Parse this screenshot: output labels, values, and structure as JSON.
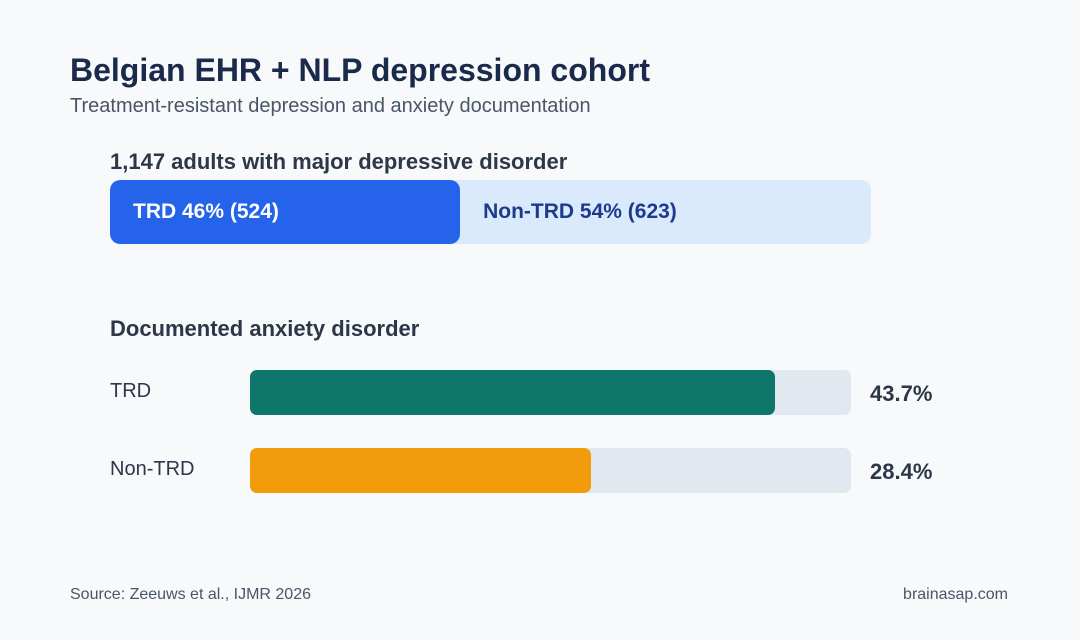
{
  "title": "Belgian EHR + NLP depression cohort",
  "subtitle": "Treatment-resistant depression and anxiety documentation",
  "footer": {
    "source": "Source: Zeeuws et al., IJMR 2026",
    "brand": "brainasap.com"
  },
  "colors": {
    "trd_split": "#2563eb",
    "nontrd_split": "#dbe9fd",
    "trd_bar": "#0e766b",
    "nontrd_bar": "#f39c0b",
    "track": "#e2e8f0"
  },
  "chart_data": [
    {
      "type": "bar",
      "stacked": true,
      "title": "1,147 adults with major depressive disorder",
      "categories": [
        "TRD",
        "Non-TRD"
      ],
      "values": [
        46,
        54
      ],
      "counts": [
        524,
        623
      ],
      "segment_labels": [
        "TRD 46% (524)",
        "Non-TRD 54% (623)"
      ]
    },
    {
      "type": "bar",
      "orientation": "horizontal",
      "title": "Documented anxiety disorder",
      "categories": [
        "TRD",
        "Non-TRD"
      ],
      "values": [
        43.7,
        28.4
      ],
      "value_labels": [
        "43.7%",
        "28.4%"
      ],
      "xlim": [
        0,
        50
      ]
    }
  ]
}
